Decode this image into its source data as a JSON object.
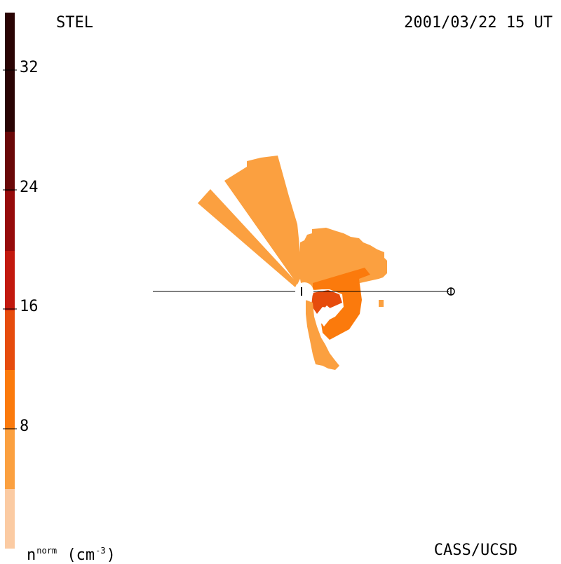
{
  "header": {
    "source": "STEL",
    "timestamp": "2001/03/22 15 UT"
  },
  "footer": {
    "credit": "CASS/UCSD",
    "unit_base": "n",
    "unit_sup": "norm",
    "unit_open": "(cm",
    "unit_exp": "-3",
    "unit_close": ")"
  },
  "colorbar": {
    "ticks": [
      "8",
      "16",
      "24",
      "32"
    ],
    "bands": [
      "#fbcba3",
      "#fba040",
      "#fb7a0c",
      "#e64c0d",
      "#c2190e",
      "#960b0b",
      "#6a0808",
      "#2a0404"
    ]
  },
  "markers": {
    "sun_icon": "open-circle",
    "earth_icon": "circle-plus"
  },
  "colors": {
    "low": "#fba040",
    "mid": "#fb7a0c",
    "high": "#e64c0d"
  }
}
